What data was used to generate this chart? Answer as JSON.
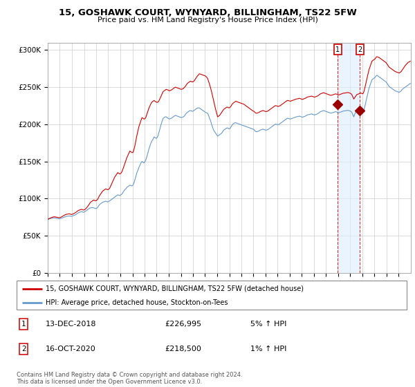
{
  "title": "15, GOSHAWK COURT, WYNYARD, BILLINGHAM, TS22 5FW",
  "subtitle": "Price paid vs. HM Land Registry's House Price Index (HPI)",
  "hpi_label": "HPI: Average price, detached house, Stockton-on-Tees",
  "house_label": "15, GOSHAWK COURT, WYNYARD, BILLINGHAM, TS22 5FW (detached house)",
  "copyright": "Contains HM Land Registry data © Crown copyright and database right 2024.\nThis data is licensed under the Open Government Licence v3.0.",
  "sale1_year": 2018,
  "sale1_month": 12,
  "sale1_price": 226995,
  "sale2_year": 2020,
  "sale2_month": 10,
  "sale2_price": 218500,
  "house_color": "#cc0000",
  "hpi_color": "#6699cc",
  "shade_color": "#ddeeff",
  "sale_marker_color": "#990000",
  "annotation_box_color": "#cc0000",
  "ylim": [
    0,
    310000
  ],
  "yticks": [
    0,
    50000,
    100000,
    150000,
    200000,
    250000,
    300000
  ],
  "ytick_labels": [
    "£0",
    "£50K",
    "£100K",
    "£150K",
    "£200K",
    "£250K",
    "£300K"
  ],
  "background_color": "#ffffff",
  "hpi_values_monthly": [
    72000,
    72500,
    73000,
    73200,
    73500,
    73800,
    74000,
    73800,
    73500,
    73200,
    73000,
    72800,
    73000,
    73500,
    74000,
    74500,
    75000,
    75500,
    76000,
    76200,
    76400,
    76500,
    76300,
    76000,
    76500,
    77000,
    77500,
    78000,
    79000,
    80000,
    81000,
    81500,
    82000,
    82500,
    82000,
    81500,
    82000,
    83000,
    84000,
    85000,
    86000,
    87000,
    87500,
    87800,
    88000,
    87500,
    87000,
    86500,
    87000,
    88000,
    90000,
    92000,
    93000,
    94000,
    95000,
    95500,
    96000,
    96500,
    96000,
    95500,
    96000,
    97000,
    98000,
    99000,
    100000,
    101000,
    102000,
    103000,
    104000,
    105000,
    104500,
    104000,
    105000,
    106000,
    108000,
    110000,
    112000,
    113000,
    115000,
    116000,
    117000,
    118000,
    117500,
    117000,
    118000,
    121000,
    125000,
    130000,
    135000,
    138000,
    142000,
    145000,
    148000,
    150000,
    149000,
    148000,
    150000,
    153000,
    157000,
    162000,
    167000,
    171000,
    175000,
    178000,
    180000,
    183000,
    182000,
    181000,
    182000,
    185000,
    190000,
    195000,
    200000,
    204000,
    208000,
    209000,
    210000,
    210000,
    209000,
    208000,
    207000,
    207500,
    208000,
    209000,
    210000,
    211000,
    212000,
    211500,
    211000,
    210500,
    210000,
    209500,
    209000,
    209500,
    210000,
    211000,
    213000,
    215000,
    216000,
    217000,
    218000,
    218500,
    218000,
    217500,
    218000,
    219000,
    220000,
    221000,
    222000,
    222000,
    222000,
    221000,
    220000,
    219000,
    218000,
    217000,
    216000,
    215500,
    215000,
    212000,
    208000,
    205000,
    200000,
    196000,
    192000,
    190000,
    188000,
    186000,
    184000,
    185000,
    186000,
    187000,
    188000,
    190000,
    192000,
    193000,
    194000,
    195000,
    195000,
    194000,
    194000,
    196000,
    198000,
    200000,
    201000,
    202000,
    202000,
    201500,
    201000,
    200500,
    200000,
    199500,
    199000,
    198500,
    198000,
    197500,
    197000,
    196500,
    196000,
    195500,
    195000,
    194500,
    194000,
    193500,
    193000,
    191000,
    190000,
    190000,
    190500,
    191000,
    192000,
    192500,
    193000,
    193500,
    193000,
    192500,
    192000,
    192500,
    193000,
    194000,
    195000,
    196000,
    197000,
    198000,
    199000,
    200000,
    200000,
    199500,
    199500,
    200000,
    201000,
    202000,
    203000,
    204000,
    205000,
    206000,
    207000,
    208000,
    208000,
    207500,
    207000,
    207500,
    208000,
    208500,
    209000,
    209500,
    210000,
    210200,
    210500,
    211000,
    210500,
    210000,
    209500,
    210000,
    210500,
    211000,
    212000,
    212500,
    213000,
    213200,
    213500,
    214000,
    213500,
    213000,
    212500,
    213000,
    213500,
    214000,
    215000,
    216000,
    217000,
    217500,
    218000,
    218500,
    218000,
    217500,
    217000,
    216500,
    216000,
    215500,
    215000,
    215200,
    215500,
    216000,
    216500,
    217000,
    216500,
    216000,
    215500,
    216000,
    216500,
    217000,
    217500,
    218000,
    218000,
    218200,
    218500,
    218800,
    218500,
    218000,
    217500,
    216000,
    213000,
    210000,
    214000,
    216000,
    218500,
    218500,
    218000,
    217500,
    217000,
    216500,
    216000,
    219000,
    224000,
    230000,
    236000,
    242000,
    248000,
    252000,
    256000,
    260000,
    261000,
    262000,
    263000,
    265000,
    266000,
    265000,
    264000,
    263000,
    262000,
    261000,
    260000,
    259000,
    258000,
    257000,
    255000,
    253000,
    251000,
    250000,
    249000,
    248000,
    247000,
    246000,
    245000,
    244500,
    244000,
    243500,
    243000,
    244000,
    245000,
    247000,
    248000,
    249000,
    250000,
    251000,
    252000,
    253000,
    254000,
    255000
  ],
  "house_values_monthly": [
    72500,
    73000,
    73800,
    74200,
    74800,
    75200,
    75500,
    75300,
    75000,
    74800,
    74500,
    74200,
    74500,
    75200,
    76000,
    76800,
    77500,
    78200,
    78800,
    79000,
    79200,
    79500,
    79000,
    78500,
    79000,
    79500,
    80200,
    81000,
    82000,
    83000,
    84000,
    84500,
    85000,
    85500,
    85000,
    84500,
    85000,
    86000,
    87500,
    89000,
    91000,
    93000,
    95000,
    96000,
    97000,
    98000,
    97500,
    97000,
    97500,
    99000,
    101500,
    104000,
    106000,
    108000,
    110000,
    111000,
    112000,
    113000,
    112500,
    112000,
    112500,
    114000,
    117000,
    120000,
    123000,
    126000,
    129000,
    131000,
    133000,
    135000,
    134000,
    133000,
    134000,
    136000,
    139000,
    143000,
    147000,
    151000,
    155000,
    158000,
    161000,
    164000,
    163000,
    162000,
    162000,
    166000,
    171000,
    178000,
    185000,
    191000,
    197000,
    201000,
    205000,
    209000,
    208000,
    207000,
    207500,
    210000,
    214000,
    218000,
    222000,
    225000,
    228000,
    230000,
    231000,
    232000,
    231000,
    230000,
    229500,
    230000,
    232000,
    235000,
    238000,
    241000,
    244000,
    245000,
    246000,
    247000,
    246500,
    246000,
    245000,
    245500,
    246000,
    247000,
    248000,
    249000,
    250000,
    249500,
    249000,
    248500,
    248000,
    247500,
    247000,
    247500,
    248000,
    249500,
    251000,
    253000,
    255000,
    256000,
    257000,
    258000,
    257500,
    257000,
    257500,
    259000,
    261000,
    263000,
    265000,
    266500,
    268000,
    267500,
    267000,
    266500,
    266000,
    265500,
    265000,
    263500,
    262000,
    258000,
    254000,
    249000,
    244000,
    238000,
    232000,
    226000,
    220000,
    215000,
    210000,
    211000,
    212000,
    214000,
    216000,
    218000,
    220000,
    221000,
    222000,
    223000,
    223000,
    222000,
    222500,
    224000,
    226000,
    228000,
    229000,
    230000,
    231000,
    230500,
    230000,
    229500,
    229000,
    228500,
    228000,
    227500,
    227000,
    226000,
    225000,
    224000,
    223000,
    222000,
    221000,
    220000,
    219000,
    218000,
    217500,
    216000,
    215000,
    215000,
    215500,
    216000,
    217000,
    217500,
    218000,
    218500,
    218000,
    217500,
    217000,
    217500,
    218000,
    219000,
    220000,
    221000,
    222000,
    223000,
    224000,
    225000,
    225000,
    224500,
    224000,
    224500,
    225000,
    226000,
    227000,
    228000,
    229000,
    230000,
    231000,
    232000,
    232000,
    231500,
    231000,
    231500,
    232000,
    232500,
    233000,
    233500,
    234000,
    234200,
    234500,
    235000,
    234500,
    234000,
    233500,
    234000,
    234500,
    235000,
    236000,
    236500,
    237000,
    237200,
    237500,
    238000,
    237500,
    237000,
    236500,
    237000,
    237500,
    238000,
    239000,
    240000,
    241000,
    241500,
    242000,
    242500,
    242000,
    241500,
    241000,
    240500,
    240000,
    239500,
    239000,
    239200,
    239500,
    240000,
    240500,
    241000,
    240500,
    240000,
    239500,
    240000,
    240500,
    241000,
    241500,
    242000,
    242000,
    242200,
    242500,
    242800,
    242500,
    242000,
    241500,
    240000,
    237000,
    234000,
    236000,
    238000,
    240000,
    240500,
    241000,
    241500,
    242000,
    241500,
    241000,
    244000,
    249000,
    255000,
    261000,
    267000,
    273000,
    277000,
    281000,
    285000,
    286000,
    287000,
    288000,
    290000,
    291000,
    290500,
    290000,
    289000,
    288000,
    287000,
    286000,
    285000,
    284000,
    283000,
    281000,
    279000,
    277000,
    276000,
    275000,
    274000,
    273000,
    272000,
    271000,
    270500,
    270000,
    269500,
    269000,
    270000,
    271000,
    273000,
    275000,
    277000,
    279000,
    280500,
    282000,
    283500,
    284000,
    285000
  ]
}
